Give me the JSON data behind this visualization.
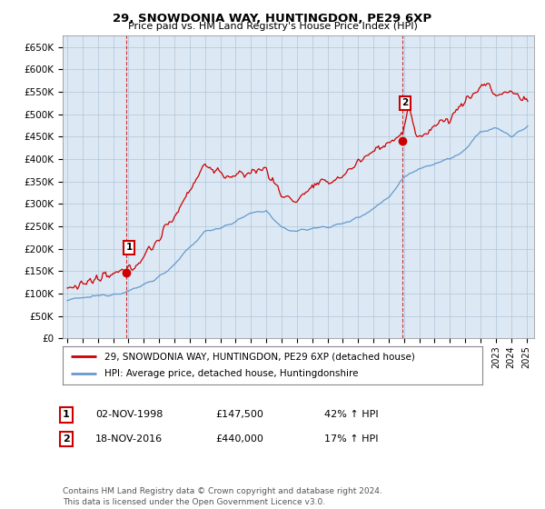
{
  "title": "29, SNOWDONIA WAY, HUNTINGDON, PE29 6XP",
  "subtitle": "Price paid vs. HM Land Registry's House Price Index (HPI)",
  "ylim": [
    0,
    675000
  ],
  "yticks": [
    0,
    50000,
    100000,
    150000,
    200000,
    250000,
    300000,
    350000,
    400000,
    450000,
    500000,
    550000,
    600000,
    650000
  ],
  "ytick_labels": [
    "£0",
    "£50K",
    "£100K",
    "£150K",
    "£200K",
    "£250K",
    "£300K",
    "£350K",
    "£400K",
    "£450K",
    "£500K",
    "£550K",
    "£600K",
    "£650K"
  ],
  "background_color": "#ffffff",
  "plot_bg_color": "#dce9f5",
  "grid_color": "#b0c4d8",
  "sale1_x": 1998.84,
  "sale1_y": 147500,
  "sale2_x": 2016.88,
  "sale2_y": 440000,
  "red_line_color": "#cc0000",
  "blue_line_color": "#6699cc",
  "legend_line1": "29, SNOWDONIA WAY, HUNTINGDON, PE29 6XP (detached house)",
  "legend_line2": "HPI: Average price, detached house, Huntingdonshire",
  "annotation1_date": "02-NOV-1998",
  "annotation1_price": "£147,500",
  "annotation1_hpi": "42% ↑ HPI",
  "annotation2_date": "18-NOV-2016",
  "annotation2_price": "£440,000",
  "annotation2_hpi": "17% ↑ HPI",
  "footer": "Contains HM Land Registry data © Crown copyright and database right 2024.\nThis data is licensed under the Open Government Licence v3.0.",
  "xmin": 1994.7,
  "xmax": 2025.5
}
